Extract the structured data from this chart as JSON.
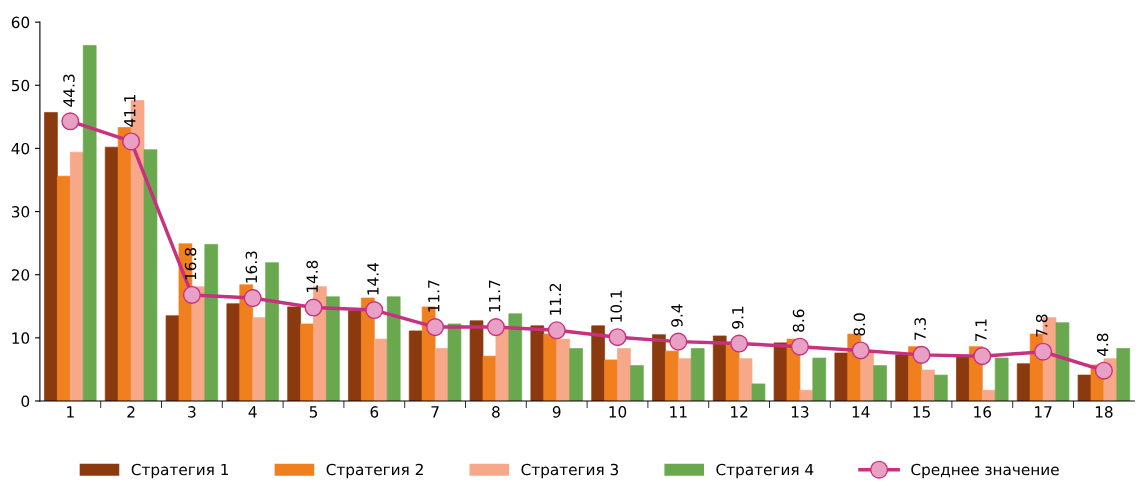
{
  "chart_data": {
    "type": "bar",
    "categories": [
      "1",
      "2",
      "3",
      "4",
      "5",
      "6",
      "7",
      "8",
      "9",
      "10",
      "11",
      "12",
      "13",
      "14",
      "15",
      "16",
      "17",
      "18"
    ],
    "series": [
      {
        "name": "Стратегия 1",
        "color": "#8b3a0f",
        "values": [
          45.7,
          40.2,
          13.5,
          15.4,
          14.9,
          14.3,
          11.1,
          12.7,
          11.9,
          11.9,
          10.5,
          10.3,
          9.2,
          7.6,
          7.3,
          7.0,
          5.9,
          4.1
        ]
      },
      {
        "name": "Стратегия 2",
        "color": "#f07f1e",
        "values": [
          35.6,
          43.3,
          24.9,
          18.4,
          12.2,
          16.3,
          14.9,
          7.1,
          10.6,
          6.5,
          7.9,
          9.3,
          9.8,
          10.6,
          8.6,
          8.6,
          10.6,
          5.7
        ]
      },
      {
        "name": "Стратегия 3",
        "color": "#f7a888",
        "values": [
          39.4,
          47.6,
          18.1,
          13.2,
          18.1,
          9.8,
          8.3,
          11.7,
          9.8,
          8.3,
          6.7,
          6.7,
          1.7,
          7.8,
          4.9,
          1.7,
          13.2,
          6.7
        ]
      },
      {
        "name": "Стратегия 4",
        "color": "#6aa84f",
        "values": [
          56.3,
          39.8,
          24.8,
          21.9,
          16.5,
          16.5,
          12.2,
          13.8,
          8.3,
          5.6,
          8.3,
          2.7,
          6.8,
          5.6,
          4.1,
          6.8,
          12.4,
          8.3
        ]
      },
      {
        "name": "Среднее значение",
        "type": "line",
        "color": "#c8317f",
        "marker": "circle",
        "line_style": "solid",
        "values": [
          44.3,
          41.1,
          16.8,
          16.3,
          14.8,
          14.4,
          11.7,
          11.7,
          11.2,
          10.1,
          9.4,
          9.1,
          8.6,
          8.0,
          7.3,
          7.1,
          7.8,
          4.8
        ],
        "value_labels": [
          "44.3",
          "41.1",
          "16.8",
          "16.3",
          "14.8",
          "14.4",
          "11.7",
          "11.7",
          "11.2",
          "10.1",
          "9.4",
          "9.1",
          "8.6",
          "8.0",
          "7.3",
          "7.1",
          "7.8",
          "4.8"
        ]
      }
    ],
    "ylim": [
      0,
      60
    ],
    "yticks": [
      0,
      10,
      20,
      30,
      40,
      50,
      60
    ],
    "grid": false,
    "legend": "bottom"
  }
}
